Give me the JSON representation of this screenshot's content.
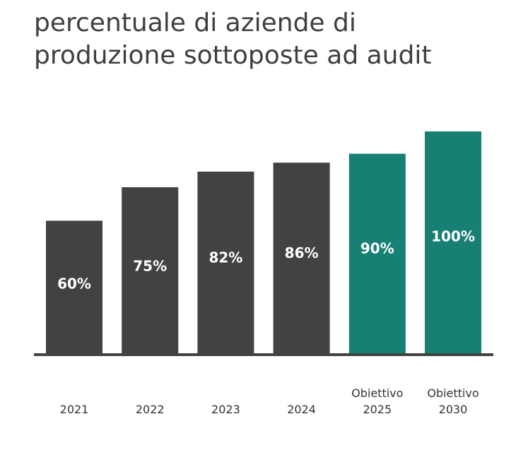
{
  "chart_data": {
    "type": "bar",
    "title_lines": [
      "percentuale di aziende di",
      "produzione sottoposte ad audit"
    ],
    "categories": [
      [
        "2021"
      ],
      [
        "2022"
      ],
      [
        "2023"
      ],
      [
        "2024"
      ],
      [
        "Obiettivo",
        "2025"
      ],
      [
        "Obiettivo",
        "2030"
      ]
    ],
    "values": [
      60,
      75,
      82,
      86,
      90,
      100
    ],
    "value_labels": [
      "60%",
      "75%",
      "82%",
      "86%",
      "90%",
      "100%"
    ],
    "bar_kinds": [
      "actual",
      "actual",
      "actual",
      "actual",
      "target",
      "target"
    ],
    "colors": {
      "actual": "#424242",
      "target": "#177f74",
      "axis": "#424242"
    },
    "ylim": [
      0,
      100
    ],
    "grid": false,
    "legend": "none"
  }
}
